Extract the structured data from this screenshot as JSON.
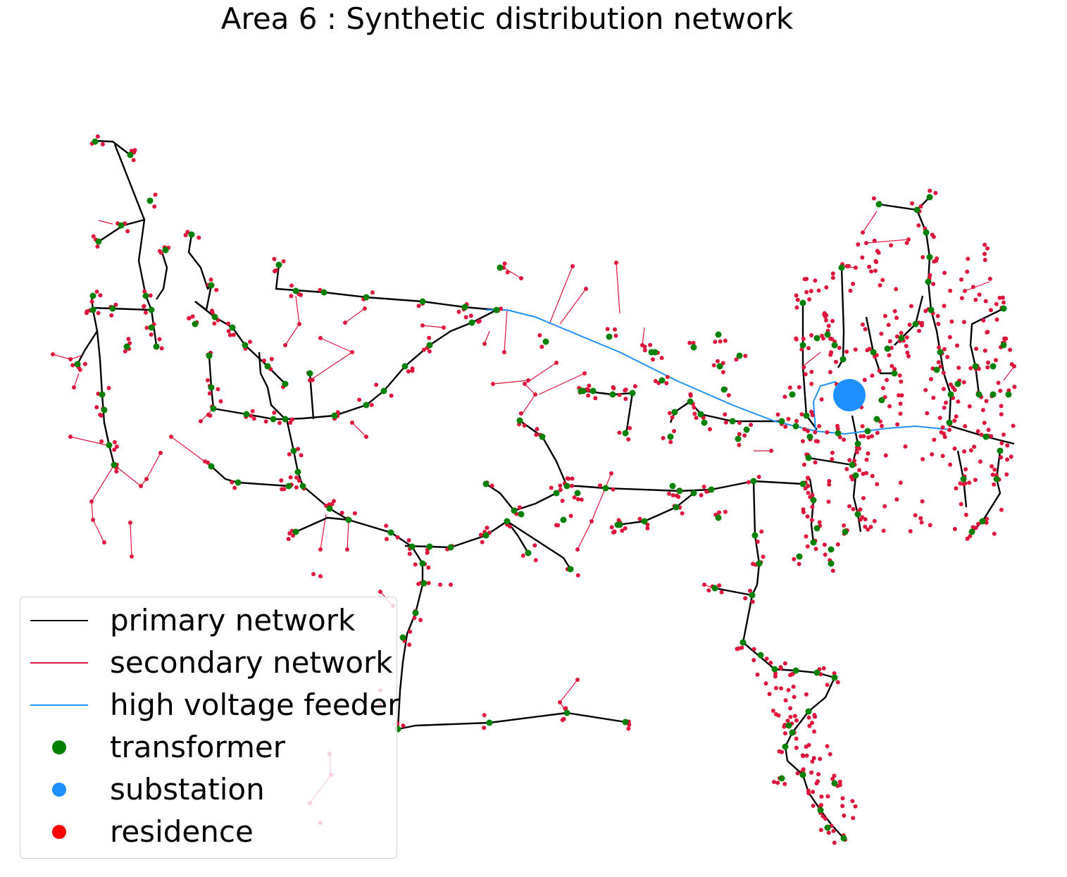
{
  "title": "Area 6 : Synthetic distribution network",
  "colors": {
    "primary": "#000000",
    "secondary": "#dc143c",
    "feeder": "#1e90ff",
    "transformer": "#008000",
    "substation": "#1e90ff",
    "residence": "#ff0000"
  },
  "legend": {
    "primary_label": "primary network",
    "secondary_label": "secondary network",
    "feeder_label": "high voltage feeder",
    "transformer_label": "transformer",
    "substation_label": "substation",
    "residence_label": "residence"
  }
}
